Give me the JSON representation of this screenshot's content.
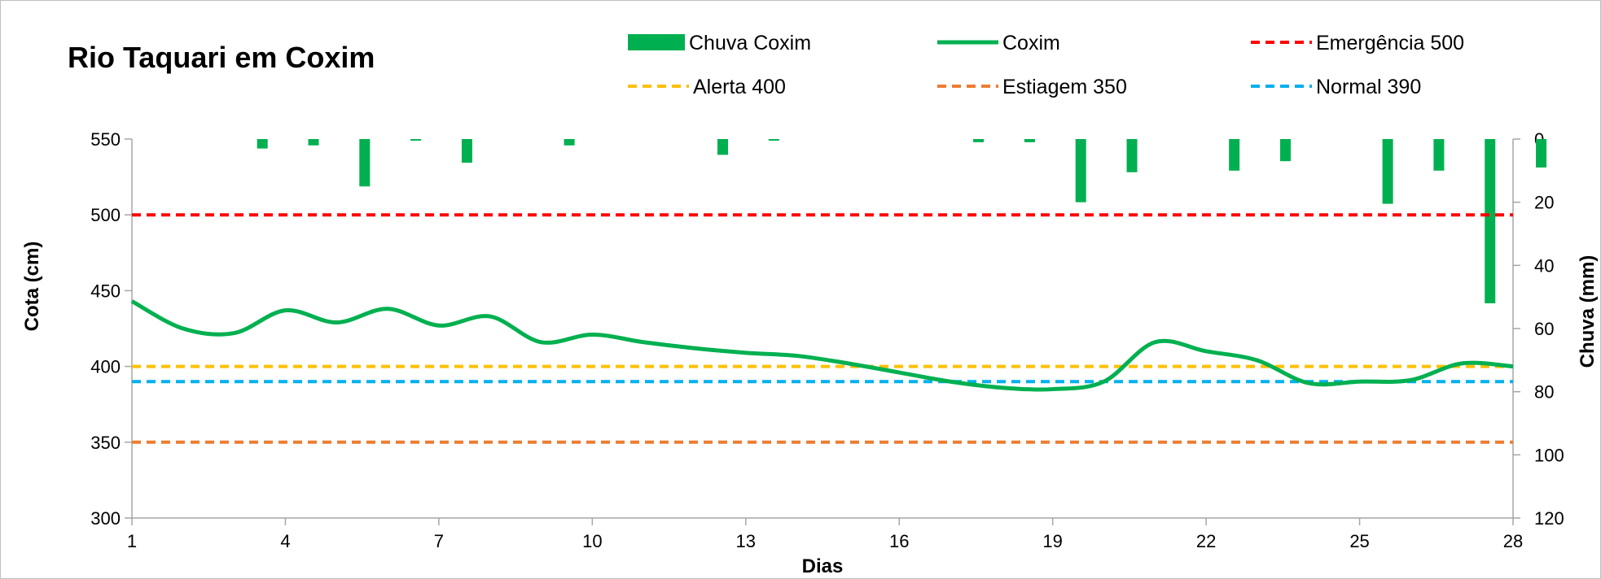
{
  "chart_data": {
    "type": "line",
    "title": "Rio Taquari em Coxim",
    "xlabel": "Dias",
    "ylabel": "Cota   (cm)",
    "y2label": "Chuva (mm)",
    "xlim": [
      1,
      28
    ],
    "xticks": [
      "1",
      "4",
      "7",
      "10",
      "13",
      "16",
      "19",
      "22",
      "25",
      "28"
    ],
    "ylim": [
      300,
      550
    ],
    "yticks": [
      "300",
      "350",
      "400",
      "450",
      "500",
      "550"
    ],
    "y2lim": [
      0,
      120
    ],
    "y2_reversed": true,
    "y2ticks": [
      "0",
      "20",
      "40",
      "60",
      "80",
      "100",
      "120"
    ],
    "grid": false,
    "legend_position": "top",
    "series": [
      {
        "name": "Chuva Coxim",
        "kind": "bar",
        "axis": "right",
        "color": "#00b050",
        "x": [
          4,
          5,
          6,
          7,
          8,
          10,
          13,
          14,
          18,
          19,
          20,
          21,
          23,
          24,
          26,
          27,
          28,
          29
        ],
        "values": [
          3,
          2,
          15,
          0.5,
          7.5,
          2,
          5,
          0.5,
          1,
          1,
          20,
          10.5,
          10,
          7,
          20.5,
          10,
          52,
          9
        ]
      },
      {
        "name": "Coxim",
        "kind": "line",
        "axis": "left",
        "color": "#00b050",
        "x": [
          1,
          2,
          3,
          4,
          5,
          6,
          7,
          8,
          9,
          10,
          11,
          12,
          13,
          14,
          15,
          16,
          17,
          18,
          19,
          20,
          21,
          22,
          23,
          24,
          25,
          26,
          27,
          28
        ],
        "values": [
          443,
          425,
          422,
          437,
          429,
          438,
          427,
          433,
          416,
          421,
          416,
          412,
          409,
          407,
          402,
          396,
          390,
          386,
          385,
          390,
          416,
          410,
          404,
          389,
          390,
          391,
          402,
          400
        ]
      },
      {
        "name": "Emergência 500",
        "kind": "hline",
        "axis": "left",
        "color": "#ff0000",
        "y": 500
      },
      {
        "name": "Alerta 400",
        "kind": "hline",
        "axis": "left",
        "color": "#ffc000",
        "y": 400
      },
      {
        "name": "Estiagem 350",
        "kind": "hline",
        "axis": "left",
        "color": "#ed7d31",
        "y": 350
      },
      {
        "name": "Normal  390",
        "kind": "hline",
        "axis": "left",
        "color": "#00b0f0",
        "y": 390
      }
    ]
  }
}
